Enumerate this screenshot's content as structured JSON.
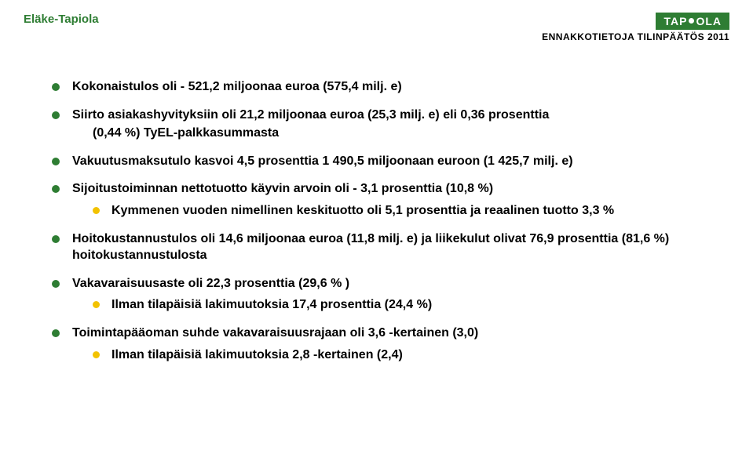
{
  "header": {
    "left_label": "Eläke-Tapiola",
    "right_label": "ENNAKKOTIETOJA TILINPÄÄTÖS 2011",
    "logo_text_before_dot": "TAP",
    "logo_text_after_dot": "OLA",
    "logo_bg": "#2e7d33",
    "logo_fg": "#ffffff",
    "accent_color": "#2e7d33"
  },
  "colors": {
    "bullet_primary": "#2e7d33",
    "bullet_secondary": "#f2c200",
    "text": "#000000",
    "background": "#ffffff"
  },
  "typography": {
    "body_fontsize": 16,
    "body_weight": 700,
    "header_left_fontsize": 15,
    "header_right_fontsize": 12,
    "logo_fontsize": 14
  },
  "bullets": [
    {
      "text": "Kokonaistulos oli - 521,2 miljoonaa euroa (575,4 milj. e)"
    },
    {
      "text": "Siirto asiakashyvityksiin oli 21,2 miljoonaa euroa (25,3 milj. e) eli 0,36 prosenttia",
      "line2": "(0,44 %) TyEL-palkkasummasta"
    },
    {
      "text": "Vakuutusmaksutulo kasvoi 4,5 prosenttia 1 490,5 miljoonaan euroon (1 425,7 milj. e)"
    },
    {
      "text": "Sijoitustoiminnan nettotuotto käyvin arvoin oli - 3,1 prosenttia (10,8 %)",
      "sub": [
        {
          "text": "Kymmenen vuoden nimellinen keskituotto oli 5,1 prosenttia ja reaalinen tuotto 3,3 %"
        }
      ]
    },
    {
      "text": "Hoitokustannustulos oli 14,6 miljoonaa euroa (11,8 milj. e) ja liikekulut olivat 76,9 prosenttia (81,6 %) hoitokustannustulosta"
    },
    {
      "text": "Vakavaraisuusaste oli 22,3 prosenttia  (29,6 % )",
      "sub": [
        {
          "text": "Ilman tilapäisiä lakimuutoksia 17,4 prosenttia (24,4 %)"
        }
      ]
    },
    {
      "text": "Toimintapääoman suhde vakavaraisuusrajaan oli 3,6 -kertainen (3,0)",
      "sub": [
        {
          "text": "Ilman tilapäisiä lakimuutoksia 2,8 -kertainen (2,4)"
        }
      ]
    }
  ]
}
